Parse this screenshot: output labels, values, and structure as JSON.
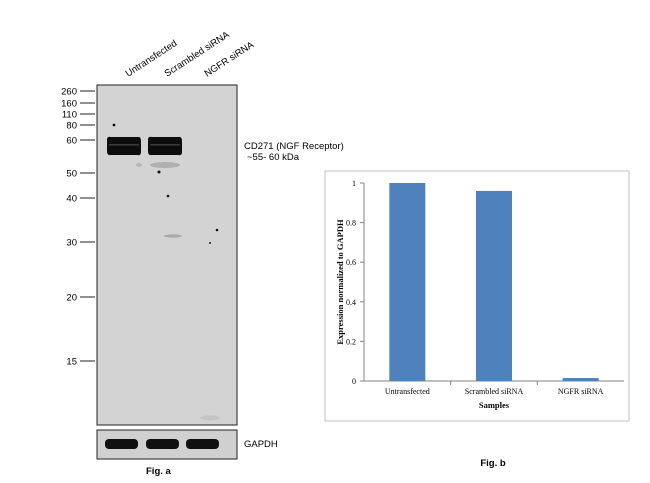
{
  "fig_a": {
    "lanes": [
      "Untransfected",
      "Scrambled siRNA",
      "NGFR siRNA"
    ],
    "markers": [
      "260",
      "160",
      "110",
      "80",
      "60",
      "50",
      "40",
      "30",
      "20",
      "15"
    ],
    "band_label_line1": "CD271 (NGF Receptor)",
    "band_label_line2": "~55- 60 kDa",
    "loading_control_label": "GAPDH",
    "caption": "Fig. a",
    "main_band_intensity": [
      1,
      1,
      0
    ],
    "gapdh_band_intensity": [
      1,
      1,
      1
    ]
  },
  "fig_b": {
    "caption": "Fig. b"
  },
  "chart_data": {
    "type": "bar",
    "categories": [
      "Untransfected",
      "Scrambled siRNA",
      "NGFR siRNA"
    ],
    "values": [
      1.0,
      0.96,
      0.015
    ],
    "xlabel": "Samples",
    "ylabel": "Expression normalized to GAPDH",
    "ylim": [
      0,
      1
    ],
    "yticks": [
      "0",
      "0.2",
      "0.4",
      "0.6",
      "0.8",
      "1"
    ],
    "bar_color": "#4f81bd",
    "grid": false,
    "legend": "none"
  }
}
